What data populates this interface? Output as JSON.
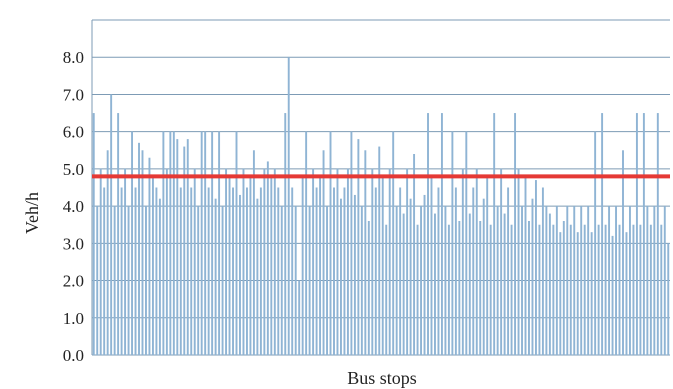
{
  "chart_data": {
    "type": "bar",
    "title": "",
    "xlabel": "Bus stops",
    "ylabel": "Veh/h",
    "ylim": [
      0,
      9
    ],
    "yticks": [
      "0.0",
      "1.0",
      "2.0",
      "3.0",
      "4.0",
      "5.0",
      "6.0",
      "7.0",
      "8.0"
    ],
    "grid": true,
    "legend": "none",
    "colors": {
      "bars": "#8fb4d4",
      "reference_line": "#e53935",
      "grid": "#7d9bb5"
    },
    "reference_line": {
      "y": 4.8
    },
    "values": [
      6.5,
      4.0,
      5.0,
      4.5,
      5.5,
      7.0,
      4.0,
      6.5,
      4.5,
      5.0,
      4.0,
      6.0,
      4.5,
      5.7,
      5.5,
      4.0,
      5.3,
      4.8,
      4.5,
      4.2,
      6.0,
      5.0,
      6.0,
      6.0,
      5.8,
      4.5,
      5.6,
      5.8,
      4.5,
      5.0,
      4.0,
      6.0,
      6.0,
      4.5,
      6.0,
      4.2,
      6.0,
      4.0,
      5.0,
      4.8,
      4.5,
      6.0,
      4.3,
      5.0,
      4.5,
      4.8,
      5.5,
      4.2,
      4.5,
      5.0,
      5.2,
      4.8,
      5.0,
      4.5,
      4.0,
      6.5,
      8.0,
      4.5,
      4.0,
      2.0,
      4.8,
      6.0,
      4.0,
      5.0,
      4.5,
      4.8,
      5.5,
      4.0,
      6.0,
      4.5,
      5.0,
      4.2,
      4.5,
      5.0,
      6.0,
      4.3,
      5.8,
      4.0,
      5.5,
      3.6,
      5.0,
      4.5,
      5.6,
      4.8,
      3.5,
      5.0,
      6.0,
      4.0,
      4.5,
      3.8,
      5.0,
      4.2,
      5.4,
      3.5,
      4.0,
      4.3,
      6.5,
      4.8,
      3.8,
      4.5,
      6.5,
      4.0,
      3.5,
      6.0,
      4.5,
      3.6,
      5.0,
      6.0,
      3.8,
      4.5,
      5.0,
      3.6,
      4.2,
      4.8,
      3.5,
      6.5,
      4.0,
      5.0,
      3.8,
      4.5,
      3.5,
      6.5,
      5.0,
      4.0,
      4.8,
      3.6,
      4.2,
      4.7,
      3.5,
      4.5,
      4.0,
      3.8,
      3.5,
      4.0,
      3.3,
      3.6,
      4.0,
      3.5,
      4.0,
      3.3,
      4.0,
      3.5,
      4.0,
      3.3,
      6.0,
      3.5,
      6.5,
      3.5,
      4.0,
      3.2,
      4.0,
      3.5,
      5.5,
      3.3,
      4.0,
      3.5,
      6.5,
      3.5,
      6.5,
      4.0,
      3.5,
      4.0,
      6.5,
      3.5,
      4.0,
      3.0
    ]
  }
}
